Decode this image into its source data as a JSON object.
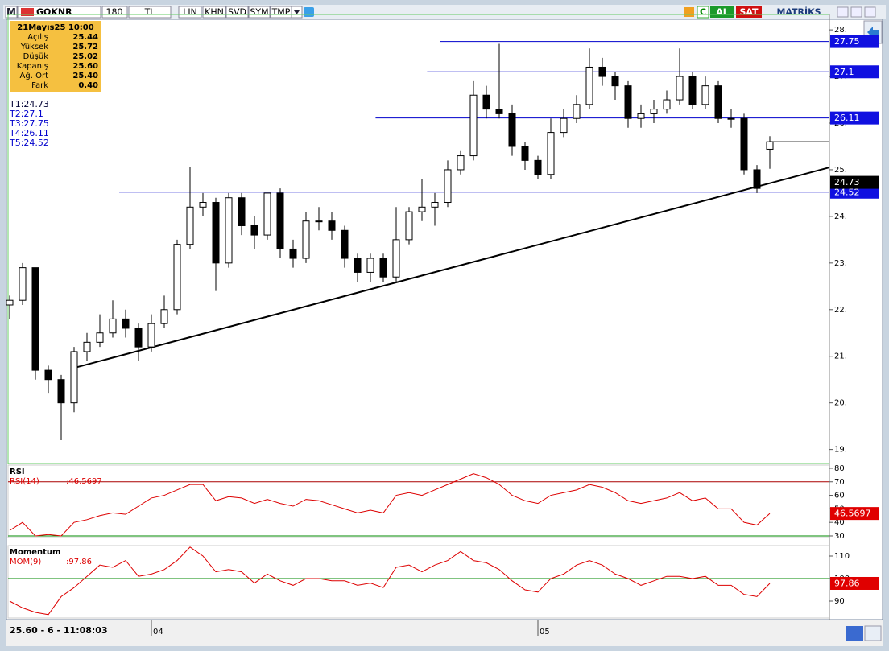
{
  "toolbar": {
    "logo": "M",
    "symbol": "GOKNR",
    "period": "180",
    "currency": "TL",
    "buttons": [
      "LIN",
      "KHN",
      "SVD",
      "SYM",
      "TMP"
    ],
    "c": "C",
    "buy": "AL",
    "sell": "SAT",
    "brand": "MATRİKS"
  },
  "info": {
    "date": "21Mayıs25 10:00",
    "rows": [
      [
        "Açılış",
        "25.44"
      ],
      [
        "Yüksek",
        "25.72"
      ],
      [
        "Düşük",
        "25.02"
      ],
      [
        "Kapanış",
        "25.60"
      ],
      [
        "Ağ. Ort",
        "25.40"
      ],
      [
        "Fark",
        "0.40"
      ]
    ]
  },
  "trend_labels": [
    "T1:24.73",
    "T2:27.1",
    "T3:27.75",
    "T4:26.11",
    "T5:24.52"
  ],
  "status": "25.60 - 6 - 11:08:03",
  "chart_data": [
    {
      "type": "candlestick",
      "x": [
        0,
        1,
        2,
        3,
        4,
        5,
        6,
        7,
        8,
        9,
        10,
        11,
        12,
        13,
        14,
        15,
        16,
        17,
        18,
        19,
        20,
        21,
        22,
        23,
        24,
        25,
        26,
        27,
        28,
        29,
        30,
        31,
        32,
        33,
        34,
        35,
        36,
        37,
        38,
        39,
        40,
        41,
        42,
        43,
        44,
        45,
        46,
        47,
        48,
        49,
        50,
        51,
        52,
        53,
        54,
        55,
        56,
        57,
        58,
        59
      ],
      "open": [
        22.1,
        22.2,
        22.9,
        20.7,
        20.5,
        20.0,
        21.1,
        21.3,
        21.5,
        21.8,
        21.6,
        21.2,
        21.7,
        22.0,
        23.4,
        24.2,
        24.3,
        23.0,
        24.4,
        23.8,
        23.6,
        24.5,
        23.3,
        23.1,
        23.9,
        23.9,
        23.7,
        23.1,
        22.8,
        23.1,
        22.7,
        23.5,
        24.1,
        24.2,
        24.3,
        25.0,
        25.3,
        26.6,
        26.3,
        26.2,
        25.5,
        25.2,
        24.9,
        25.8,
        26.1,
        26.4,
        27.2,
        27.0,
        26.8,
        26.1,
        26.2,
        26.3,
        26.5,
        27.0,
        26.4,
        26.8,
        26.1,
        26.1,
        25.0,
        25.44
      ],
      "high": [
        22.3,
        23.0,
        22.9,
        20.8,
        20.6,
        21.2,
        21.5,
        21.9,
        22.2,
        22.0,
        21.7,
        21.9,
        22.3,
        23.5,
        25.05,
        24.5,
        24.4,
        24.5,
        24.5,
        24.0,
        24.5,
        24.6,
        23.5,
        24.1,
        24.2,
        24.1,
        23.8,
        23.2,
        23.2,
        23.2,
        24.2,
        24.2,
        24.8,
        24.5,
        25.2,
        25.4,
        26.9,
        26.8,
        27.7,
        26.4,
        25.6,
        25.3,
        26.1,
        26.3,
        26.6,
        27.6,
        27.4,
        27.1,
        26.9,
        26.4,
        26.5,
        26.7,
        27.6,
        27.1,
        27.0,
        26.9,
        26.3,
        26.2,
        25.1,
        25.72
      ],
      "low": [
        21.8,
        22.1,
        20.5,
        20.2,
        19.2,
        19.8,
        20.9,
        21.2,
        21.4,
        21.4,
        20.9,
        21.1,
        21.6,
        21.9,
        23.3,
        24.0,
        22.4,
        22.9,
        23.6,
        23.3,
        23.5,
        23.1,
        22.9,
        23.0,
        23.7,
        23.5,
        22.9,
        22.6,
        22.6,
        22.6,
        22.6,
        23.4,
        23.9,
        23.8,
        24.2,
        24.9,
        25.2,
        26.1,
        26.1,
        25.3,
        25.0,
        24.8,
        24.8,
        25.7,
        26.0,
        26.3,
        26.8,
        26.5,
        25.9,
        25.9,
        26.0,
        26.2,
        26.4,
        26.3,
        26.3,
        26.0,
        25.9,
        24.9,
        24.5,
        25.02
      ],
      "close": [
        22.2,
        22.9,
        20.7,
        20.5,
        20.0,
        21.1,
        21.3,
        21.5,
        21.8,
        21.6,
        21.2,
        21.7,
        22.0,
        23.4,
        24.2,
        24.3,
        23.0,
        24.4,
        23.8,
        23.6,
        24.5,
        23.3,
        23.1,
        23.9,
        23.9,
        23.7,
        23.1,
        22.8,
        23.1,
        22.7,
        23.5,
        24.1,
        24.2,
        24.3,
        25.0,
        25.3,
        26.6,
        26.3,
        26.2,
        25.5,
        25.2,
        24.9,
        25.8,
        26.1,
        26.4,
        27.2,
        27.0,
        26.8,
        26.1,
        26.2,
        26.3,
        26.5,
        27.0,
        26.4,
        26.8,
        26.1,
        26.1,
        25.0,
        24.6,
        25.6
      ],
      "xlim": [
        -0.125,
        63.625
      ],
      "ylim": [
        18.7,
        28.33
      ],
      "yticks": [
        {
          "value": 19,
          "label": "19."
        },
        {
          "value": 20,
          "label": "20."
        },
        {
          "value": 21,
          "label": "21."
        },
        {
          "value": 22,
          "label": "22."
        },
        {
          "value": 23,
          "label": "23."
        },
        {
          "value": 24,
          "label": "24."
        },
        {
          "value": 25,
          "label": "25."
        },
        {
          "value": 26,
          "label": "26."
        },
        {
          "value": 27,
          "label": "27."
        },
        {
          "value": 28,
          "label": "28."
        }
      ],
      "xticks": [
        {
          "value": 11,
          "label": "04"
        },
        {
          "value": 41,
          "label": "05"
        }
      ],
      "up_color": "#ffffff",
      "down_color": "#000000",
      "levels": [
        {
          "value": 27.75,
          "start": 33.4
        },
        {
          "value": 27.1,
          "start": 32.4
        },
        {
          "value": 26.11,
          "start": 28.4
        },
        {
          "value": 24.52,
          "start": 8.5
        }
      ],
      "level_color": "#0000cc",
      "trendline": {
        "x": [
          5,
          63.625
        ],
        "y": [
          20.75,
          25.05
        ]
      },
      "trend_value": 24.73
    },
    {
      "type": "line",
      "title": "RSI",
      "series": [
        {
          "name": "RSI(14)",
          "color": "#dd0000",
          "values": [
            34,
            40,
            30,
            31,
            30,
            40,
            42,
            45,
            47,
            46,
            52,
            58,
            60,
            64,
            68,
            68,
            56,
            59,
            58,
            54,
            57,
            54,
            52,
            57,
            56,
            53,
            50,
            47,
            49,
            47,
            60,
            62,
            60,
            64,
            68,
            72,
            76,
            73,
            68,
            60,
            56,
            54,
            60,
            62,
            64,
            68,
            66,
            62,
            56,
            54,
            56,
            58,
            62,
            56,
            58,
            50,
            50,
            40,
            38,
            46.5697
          ]
        }
      ],
      "value_label": ":46.5697",
      "ylim": [
        28.8,
        82.35
      ],
      "yticks": [
        30,
        40,
        50,
        60,
        70,
        80
      ],
      "reference_lines": [
        {
          "value": 70,
          "color": "#aa0000"
        },
        {
          "value": 30,
          "color": "#008800"
        }
      ]
    },
    {
      "type": "line",
      "title": "Momentum",
      "series": [
        {
          "name": "MOM(9)",
          "color": "#dd0000",
          "values": [
            90,
            87,
            85,
            84,
            92,
            96,
            101,
            106,
            105,
            108,
            101,
            102,
            104,
            108,
            114,
            110,
            103,
            104,
            103,
            98,
            102,
            99,
            97,
            100,
            100,
            99,
            99,
            97,
            98,
            96,
            105,
            106,
            103,
            106,
            108,
            112,
            108,
            107,
            104,
            99,
            95,
            94,
            100,
            102,
            106,
            108,
            106,
            102,
            100,
            97,
            99,
            101,
            101,
            100,
            101,
            97,
            97,
            93,
            92,
            97.86
          ]
        }
      ],
      "value_label": ":97.86",
      "ylim": [
        82.5,
        114.64
      ],
      "yticks": [
        90,
        100,
        110
      ],
      "reference_lines": [
        {
          "value": 100,
          "color": "#008800"
        }
      ]
    }
  ]
}
